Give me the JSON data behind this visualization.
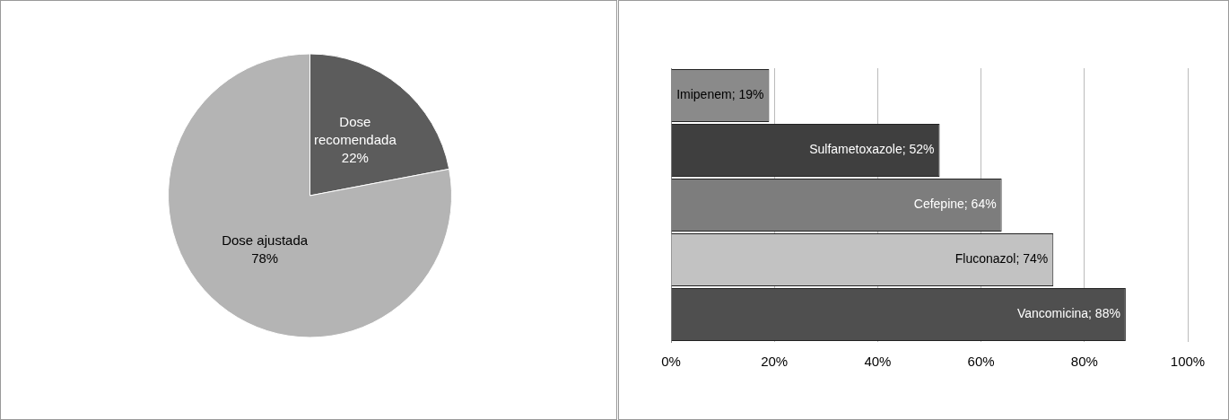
{
  "chart_data": [
    {
      "type": "pie",
      "categories": [
        "Dose recomendada",
        "Dose ajustada"
      ],
      "values": [
        22,
        78
      ],
      "colors": [
        "#5c5c5c",
        "#b4b4b4"
      ],
      "value_labels": [
        "22%",
        "78%"
      ],
      "legend": false
    },
    {
      "type": "bar",
      "orientation": "horizontal",
      "categories": [
        null,
        null,
        null,
        null,
        null
      ],
      "values": [
        19,
        52,
        64,
        74,
        88
      ],
      "colors": [
        "#8a8a8a",
        "#3f3f3f",
        "#7d7d7d",
        "#c2c2c2",
        "#4f4f4f"
      ],
      "value_labels": [
        "Imipenem; 19%",
        "Sulfametoxazole; 52%",
        "Cefepine; 64%",
        "Fluconazol; 74%",
        "Vancomicina; 88%"
      ],
      "xlim": [
        0,
        100
      ],
      "xticks": [
        {
          "value": 0,
          "label": "0%"
        },
        {
          "value": 20,
          "label": "20%"
        },
        {
          "value": 40,
          "label": "40%"
        },
        {
          "value": 60,
          "label": "60%"
        },
        {
          "value": 80,
          "label": "80%"
        },
        {
          "value": 100,
          "label": "100%"
        }
      ],
      "grid": "x",
      "tick_labels": "x",
      "legend": false
    }
  ]
}
